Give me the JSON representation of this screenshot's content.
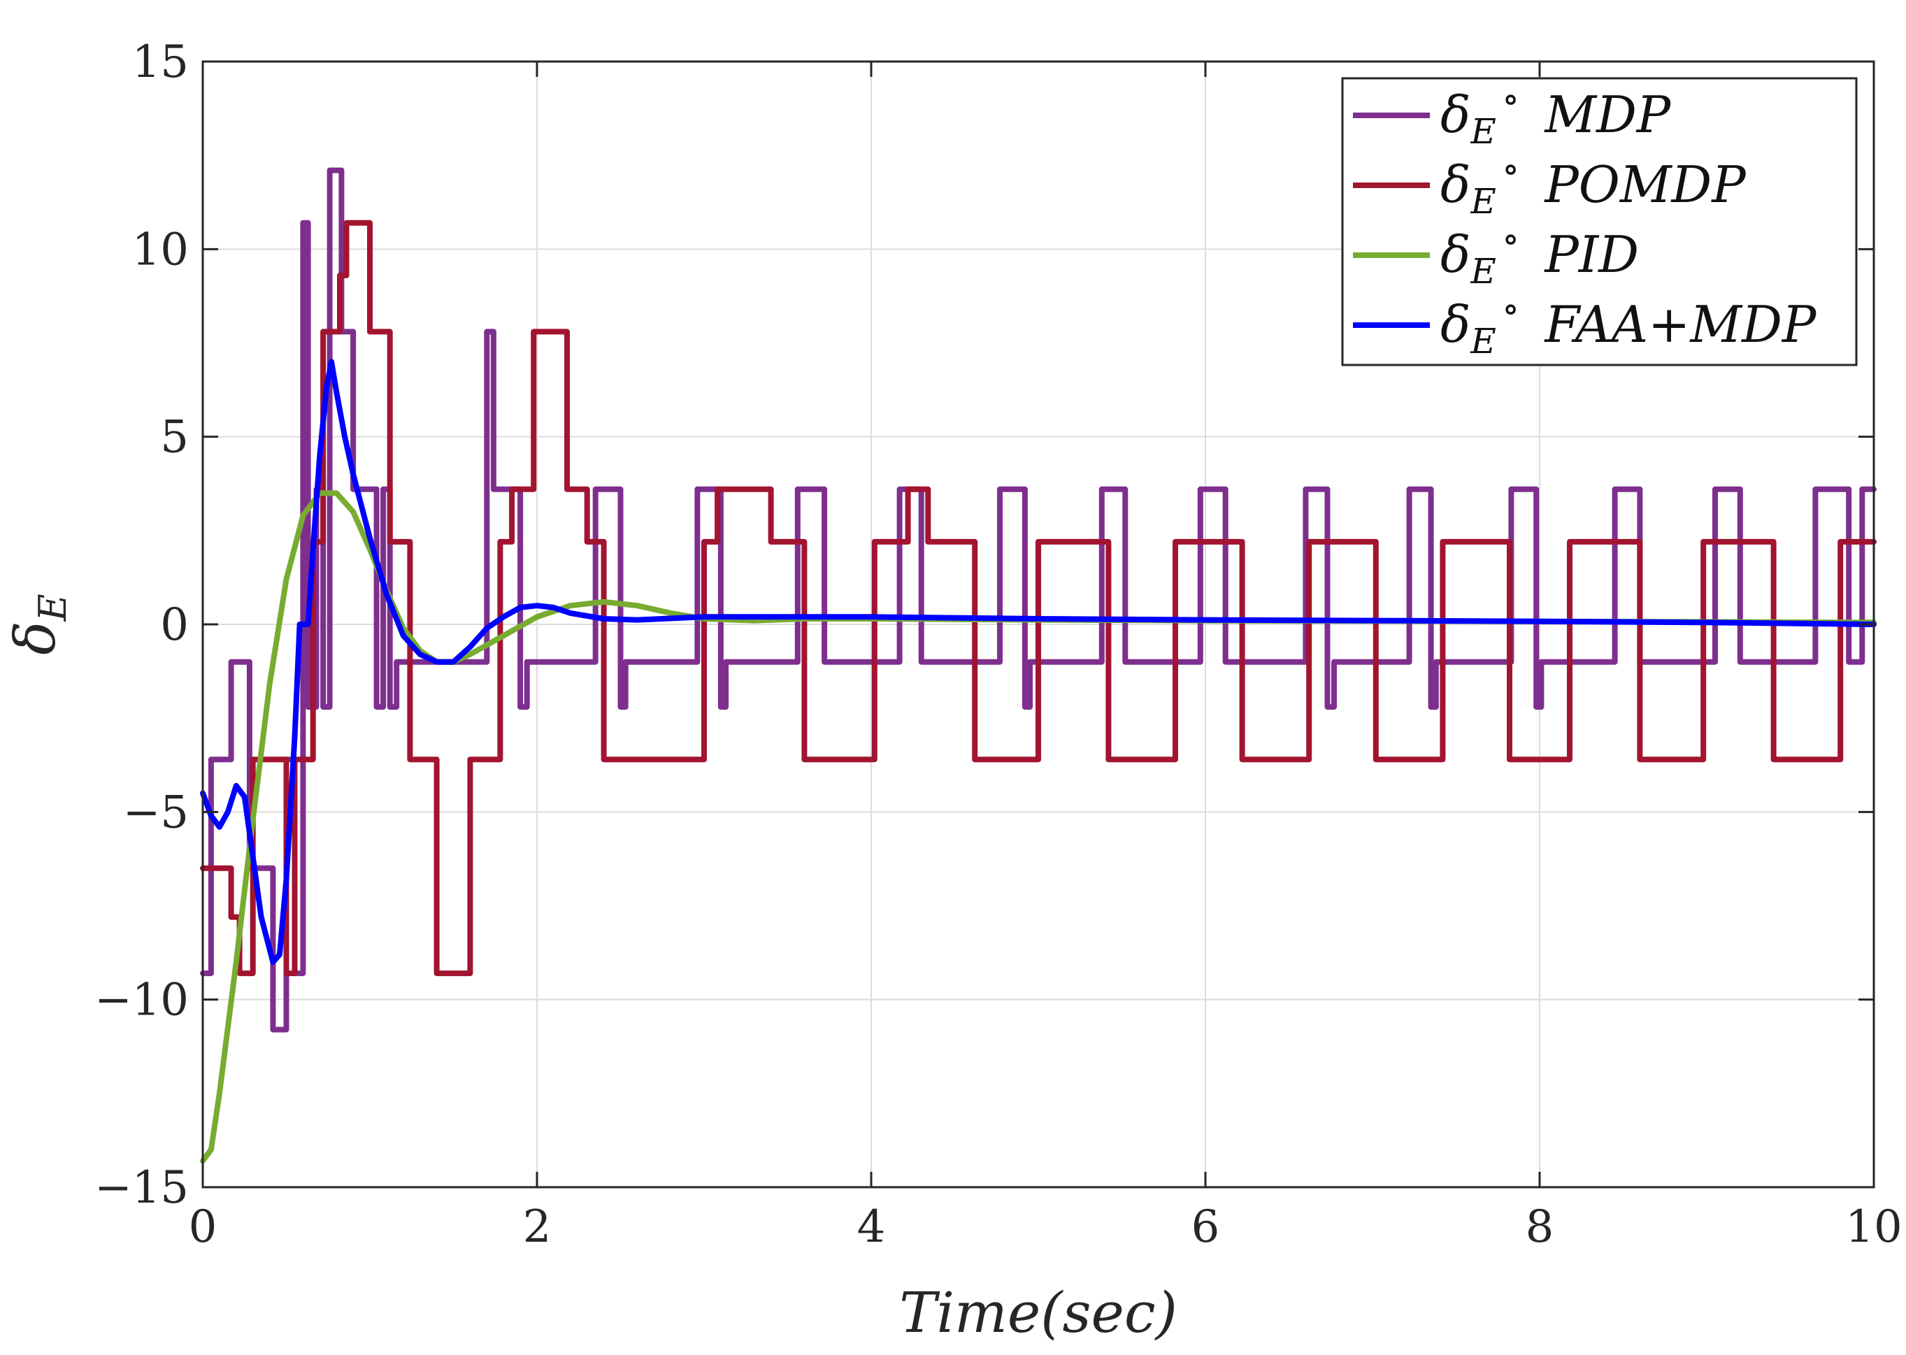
{
  "chart_data": {
    "type": "line",
    "title": "",
    "xlabel": "Time(sec)",
    "ylabel_symbol": "δ",
    "ylabel_subscript": "E",
    "xlim": [
      0,
      10
    ],
    "ylim": [
      -15,
      15
    ],
    "grid": true,
    "legend_position": "top-right",
    "x_ticks": [
      0,
      2,
      4,
      6,
      8,
      10
    ],
    "x_tick_labels": [
      "0",
      "2",
      "4",
      "6",
      "8",
      "10"
    ],
    "y_ticks": [
      -15,
      -10,
      -5,
      0,
      5,
      10,
      15
    ],
    "y_tick_labels": [
      "−15",
      "−10",
      "−5",
      "0",
      "5",
      "10",
      "15"
    ],
    "series": [
      {
        "name": "MDP",
        "legend_symbol": "δ",
        "legend_subscript": "E",
        "legend_degree": "∘",
        "legend_name": "MDP",
        "color": "#7E2F8E",
        "points": [
          [
            0,
            -9.3
          ],
          [
            0.05,
            -9.3
          ],
          [
            0.05,
            -3.6
          ],
          [
            0.17,
            -3.6
          ],
          [
            0.17,
            -1.0
          ],
          [
            0.28,
            -1.0
          ],
          [
            0.28,
            -6.5
          ],
          [
            0.42,
            -6.5
          ],
          [
            0.42,
            -10.8
          ],
          [
            0.5,
            -10.8
          ],
          [
            0.5,
            -3.6
          ],
          [
            0.55,
            -3.6
          ],
          [
            0.55,
            -9.3
          ],
          [
            0.6,
            -9.3
          ],
          [
            0.6,
            10.7
          ],
          [
            0.63,
            10.7
          ],
          [
            0.63,
            -2.2
          ],
          [
            0.68,
            -2.2
          ],
          [
            0.68,
            3.6
          ],
          [
            0.72,
            3.6
          ],
          [
            0.72,
            -2.2
          ],
          [
            0.76,
            -2.2
          ],
          [
            0.76,
            12.1
          ],
          [
            0.83,
            12.1
          ],
          [
            0.83,
            7.8
          ],
          [
            0.9,
            7.8
          ],
          [
            0.9,
            3.6
          ],
          [
            1.04,
            3.6
          ],
          [
            1.04,
            -2.2
          ],
          [
            1.08,
            -2.2
          ],
          [
            1.08,
            3.6
          ],
          [
            1.12,
            3.6
          ],
          [
            1.12,
            -2.2
          ],
          [
            1.16,
            -2.2
          ],
          [
            1.16,
            -1.0
          ],
          [
            1.7,
            -1.0
          ],
          [
            1.7,
            7.8
          ],
          [
            1.74,
            7.8
          ],
          [
            1.74,
            3.6
          ],
          [
            1.9,
            3.6
          ],
          [
            1.9,
            -2.2
          ],
          [
            1.94,
            -2.2
          ],
          [
            1.94,
            -1.0
          ],
          [
            2.35,
            -1.0
          ],
          [
            2.35,
            3.6
          ],
          [
            2.5,
            3.6
          ],
          [
            2.5,
            -2.2
          ],
          [
            2.53,
            -2.2
          ],
          [
            2.53,
            -1.0
          ],
          [
            2.96,
            -1.0
          ],
          [
            2.96,
            3.6
          ],
          [
            3.1,
            3.6
          ],
          [
            3.1,
            -2.2
          ],
          [
            3.13,
            -2.2
          ],
          [
            3.13,
            -1.0
          ],
          [
            3.56,
            -1.0
          ],
          [
            3.56,
            3.6
          ],
          [
            3.72,
            3.6
          ],
          [
            3.72,
            -1.0
          ],
          [
            4.17,
            -1.0
          ],
          [
            4.17,
            3.6
          ],
          [
            4.3,
            3.6
          ],
          [
            4.3,
            -1.0
          ],
          [
            4.77,
            -1.0
          ],
          [
            4.77,
            3.6
          ],
          [
            4.92,
            3.6
          ],
          [
            4.92,
            -2.2
          ],
          [
            4.95,
            -2.2
          ],
          [
            4.95,
            -1.0
          ],
          [
            5.38,
            -1.0
          ],
          [
            5.38,
            3.6
          ],
          [
            5.52,
            3.6
          ],
          [
            5.52,
            -1.0
          ],
          [
            5.97,
            -1.0
          ],
          [
            5.97,
            3.6
          ],
          [
            6.12,
            3.6
          ],
          [
            6.12,
            -1.0
          ],
          [
            6.6,
            -1.0
          ],
          [
            6.6,
            3.6
          ],
          [
            6.73,
            3.6
          ],
          [
            6.73,
            -2.2
          ],
          [
            6.77,
            -2.2
          ],
          [
            6.77,
            -1.0
          ],
          [
            7.22,
            -1.0
          ],
          [
            7.22,
            3.6
          ],
          [
            7.35,
            3.6
          ],
          [
            7.35,
            -2.2
          ],
          [
            7.38,
            -2.2
          ],
          [
            7.38,
            -1.0
          ],
          [
            7.83,
            -1.0
          ],
          [
            7.83,
            3.6
          ],
          [
            7.98,
            3.6
          ],
          [
            7.98,
            -2.2
          ],
          [
            8.01,
            -2.2
          ],
          [
            8.01,
            -1.0
          ],
          [
            8.45,
            -1.0
          ],
          [
            8.45,
            3.6
          ],
          [
            8.6,
            3.6
          ],
          [
            8.6,
            -1.0
          ],
          [
            9.05,
            -1.0
          ],
          [
            9.05,
            3.6
          ],
          [
            9.2,
            3.6
          ],
          [
            9.2,
            -1.0
          ],
          [
            9.65,
            -1.0
          ],
          [
            9.65,
            3.6
          ],
          [
            9.85,
            3.6
          ],
          [
            9.85,
            -1.0
          ],
          [
            9.93,
            -1.0
          ],
          [
            9.93,
            3.6
          ],
          [
            10,
            3.6
          ]
        ]
      },
      {
        "name": "POMDP",
        "legend_symbol": "δ",
        "legend_subscript": "E",
        "legend_degree": "∘",
        "legend_name": "POMDP",
        "color": "#A2142F",
        "points": [
          [
            0,
            -6.5
          ],
          [
            0.17,
            -6.5
          ],
          [
            0.17,
            -7.8
          ],
          [
            0.22,
            -7.8
          ],
          [
            0.22,
            -9.3
          ],
          [
            0.3,
            -9.3
          ],
          [
            0.3,
            -3.6
          ],
          [
            0.5,
            -3.6
          ],
          [
            0.5,
            -9.3
          ],
          [
            0.55,
            -9.3
          ],
          [
            0.55,
            -3.6
          ],
          [
            0.66,
            -3.6
          ],
          [
            0.66,
            2.2
          ],
          [
            0.72,
            2.2
          ],
          [
            0.72,
            7.8
          ],
          [
            0.82,
            7.8
          ],
          [
            0.82,
            9.3
          ],
          [
            0.86,
            9.3
          ],
          [
            0.86,
            10.7
          ],
          [
            1.0,
            10.7
          ],
          [
            1.0,
            7.8
          ],
          [
            1.12,
            7.8
          ],
          [
            1.12,
            2.2
          ],
          [
            1.24,
            2.2
          ],
          [
            1.24,
            -3.6
          ],
          [
            1.4,
            -3.6
          ],
          [
            1.4,
            -9.3
          ],
          [
            1.6,
            -9.3
          ],
          [
            1.6,
            -3.6
          ],
          [
            1.78,
            -3.6
          ],
          [
            1.78,
            2.2
          ],
          [
            1.85,
            2.2
          ],
          [
            1.85,
            3.6
          ],
          [
            1.98,
            3.6
          ],
          [
            1.98,
            7.8
          ],
          [
            2.18,
            7.8
          ],
          [
            2.18,
            3.6
          ],
          [
            2.3,
            3.6
          ],
          [
            2.3,
            2.2
          ],
          [
            2.4,
            2.2
          ],
          [
            2.4,
            -3.6
          ],
          [
            3.0,
            -3.6
          ],
          [
            3.0,
            2.2
          ],
          [
            3.08,
            2.2
          ],
          [
            3.08,
            3.6
          ],
          [
            3.4,
            3.6
          ],
          [
            3.4,
            2.2
          ],
          [
            3.6,
            2.2
          ],
          [
            3.6,
            -3.6
          ],
          [
            4.02,
            -3.6
          ],
          [
            4.02,
            2.2
          ],
          [
            4.22,
            2.2
          ],
          [
            4.22,
            3.6
          ],
          [
            4.34,
            3.6
          ],
          [
            4.34,
            2.2
          ],
          [
            4.62,
            2.2
          ],
          [
            4.62,
            -3.6
          ],
          [
            5.0,
            -3.6
          ],
          [
            5.0,
            2.2
          ],
          [
            5.42,
            2.2
          ],
          [
            5.42,
            -3.6
          ],
          [
            5.82,
            -3.6
          ],
          [
            5.82,
            2.2
          ],
          [
            6.22,
            2.2
          ],
          [
            6.22,
            -3.6
          ],
          [
            6.62,
            -3.6
          ],
          [
            6.62,
            2.2
          ],
          [
            7.02,
            2.2
          ],
          [
            7.02,
            -3.6
          ],
          [
            7.42,
            -3.6
          ],
          [
            7.42,
            2.2
          ],
          [
            7.82,
            2.2
          ],
          [
            7.82,
            -3.6
          ],
          [
            8.18,
            -3.6
          ],
          [
            8.18,
            2.2
          ],
          [
            8.6,
            2.2
          ],
          [
            8.6,
            -3.6
          ],
          [
            8.98,
            -3.6
          ],
          [
            8.98,
            2.2
          ],
          [
            9.4,
            2.2
          ],
          [
            9.4,
            -3.6
          ],
          [
            9.8,
            -3.6
          ],
          [
            9.8,
            2.2
          ],
          [
            10,
            2.2
          ]
        ]
      },
      {
        "name": "PID",
        "legend_symbol": "δ",
        "legend_subscript": "E",
        "legend_degree": "∘",
        "legend_name": "PID",
        "color": "#77AC30",
        "points": [
          [
            0,
            -14.3
          ],
          [
            0.05,
            -14.0
          ],
          [
            0.1,
            -12.5
          ],
          [
            0.2,
            -9.0
          ],
          [
            0.3,
            -5.2
          ],
          [
            0.4,
            -1.6
          ],
          [
            0.5,
            1.2
          ],
          [
            0.6,
            2.9
          ],
          [
            0.7,
            3.5
          ],
          [
            0.8,
            3.5
          ],
          [
            0.9,
            3.0
          ],
          [
            1.0,
            2.0
          ],
          [
            1.1,
            0.9
          ],
          [
            1.2,
            -0.1
          ],
          [
            1.3,
            -0.7
          ],
          [
            1.4,
            -1.0
          ],
          [
            1.5,
            -1.0
          ],
          [
            1.6,
            -0.8
          ],
          [
            1.8,
            -0.3
          ],
          [
            2.0,
            0.2
          ],
          [
            2.2,
            0.5
          ],
          [
            2.4,
            0.6
          ],
          [
            2.6,
            0.5
          ],
          [
            2.8,
            0.3
          ],
          [
            3.0,
            0.15
          ],
          [
            3.3,
            0.1
          ],
          [
            3.6,
            0.15
          ],
          [
            4.0,
            0.15
          ],
          [
            5.0,
            0.12
          ],
          [
            6.0,
            0.1
          ],
          [
            8.0,
            0.08
          ],
          [
            10.0,
            0.05
          ]
        ]
      },
      {
        "name": "FAA+MDP",
        "legend_symbol": "δ",
        "legend_subscript": "E",
        "legend_degree": "∘",
        "legend_name": "FAA+MDP",
        "color": "#0000FF",
        "points": [
          [
            0,
            -4.5
          ],
          [
            0.05,
            -5.1
          ],
          [
            0.1,
            -5.4
          ],
          [
            0.15,
            -5.0
          ],
          [
            0.2,
            -4.3
          ],
          [
            0.25,
            -4.6
          ],
          [
            0.3,
            -6.2
          ],
          [
            0.35,
            -7.8
          ],
          [
            0.42,
            -9.0
          ],
          [
            0.46,
            -8.8
          ],
          [
            0.5,
            -6.8
          ],
          [
            0.55,
            -3.0
          ],
          [
            0.58,
            0.0
          ],
          [
            0.63,
            0.0
          ],
          [
            0.66,
            2.0
          ],
          [
            0.7,
            4.5
          ],
          [
            0.74,
            6.3
          ],
          [
            0.77,
            7.0
          ],
          [
            0.8,
            6.2
          ],
          [
            0.85,
            5.0
          ],
          [
            0.9,
            4.0
          ],
          [
            1.0,
            2.3
          ],
          [
            1.1,
            0.8
          ],
          [
            1.2,
            -0.3
          ],
          [
            1.3,
            -0.8
          ],
          [
            1.4,
            -1.0
          ],
          [
            1.5,
            -1.0
          ],
          [
            1.6,
            -0.6
          ],
          [
            1.7,
            -0.1
          ],
          [
            1.8,
            0.2
          ],
          [
            1.9,
            0.45
          ],
          [
            2.0,
            0.5
          ],
          [
            2.1,
            0.45
          ],
          [
            2.2,
            0.3
          ],
          [
            2.4,
            0.15
          ],
          [
            2.6,
            0.12
          ],
          [
            3.0,
            0.2
          ],
          [
            4.0,
            0.2
          ],
          [
            5.0,
            0.15
          ],
          [
            6.0,
            0.12
          ],
          [
            7.0,
            0.1
          ],
          [
            8.0,
            0.08
          ],
          [
            9.0,
            0.05
          ],
          [
            10.0,
            0.0
          ]
        ]
      }
    ]
  }
}
